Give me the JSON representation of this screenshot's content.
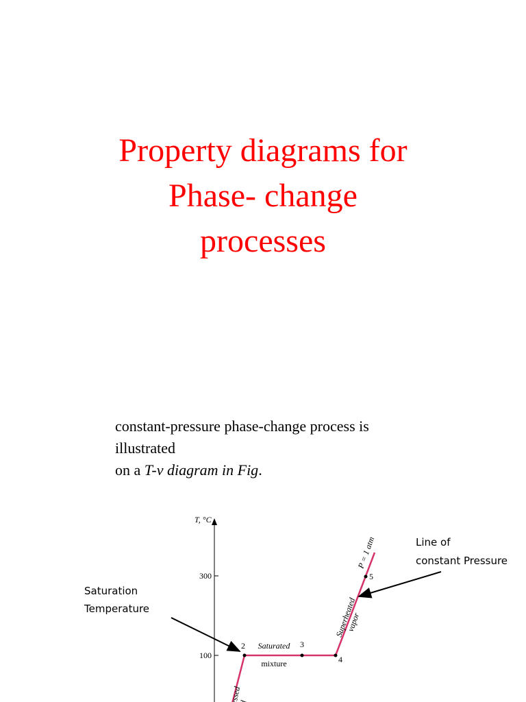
{
  "title": {
    "lines": [
      "Property diagrams for",
      "Phase- change",
      "processes"
    ]
  },
  "body": {
    "line1": "constant-pressure phase-change process is",
    "line2": "illustrated",
    "line3_prefix": "on a ",
    "line3_italic": "T-v diagram in Fig",
    "line3_suffix": "."
  },
  "diagram": {
    "axis_label": "T, °C",
    "ticks": [
      "300",
      "100"
    ],
    "points": [
      "2",
      "3",
      "4",
      "5"
    ],
    "region_labels": {
      "mixture_1": "Saturated",
      "mixture_2": "mixture",
      "vapor_1": "Superheated",
      "vapor_2": "vapor",
      "liquid_1": "Compressed",
      "liquid_2": "liquid",
      "pressure": "P = 1 atm"
    },
    "annotations": {
      "line_1": "Line of",
      "line_2": "constant Pressure",
      "sat_1": "Saturation",
      "sat_2": "Temperature"
    }
  }
}
